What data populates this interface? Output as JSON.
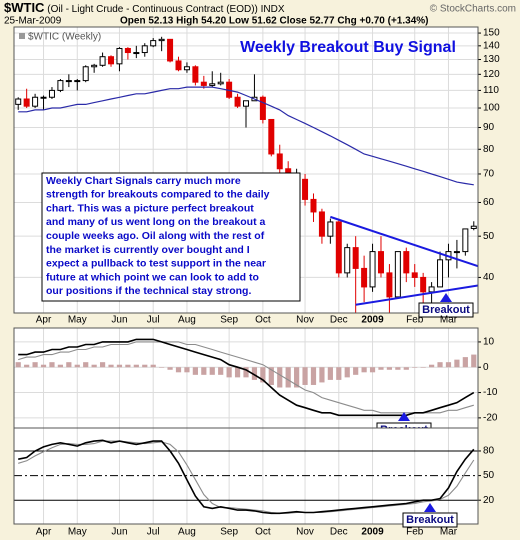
{
  "header": {
    "symbol": "$WTIC",
    "description": "(Oil - Light Crude - Continuous Contract (EOD))",
    "exchange": "INDX",
    "date": "25-Mar-2009",
    "quote": "Open 52.13 High 54.20 Low 51.62 Close 52.77 Chg +0.70 (+1.34%)",
    "credit": "© StockCharts.com"
  },
  "chart_data": [
    {
      "type": "candlestick",
      "title": "Weekly Breakout Buy Signal",
      "label": "$WTIC (Weekly)",
      "log_scale": true,
      "grid": true,
      "categories": [
        null,
        null,
        null,
        "Apr",
        null,
        null,
        null,
        "May",
        null,
        null,
        null,
        null,
        "Jun",
        null,
        null,
        null,
        "Jul",
        null,
        null,
        null,
        "Aug",
        null,
        null,
        null,
        null,
        "Sep",
        null,
        null,
        null,
        "Oct",
        null,
        null,
        null,
        null,
        "Nov",
        null,
        null,
        null,
        "Dec",
        null,
        null,
        null,
        "2009",
        null,
        null,
        null,
        null,
        "Feb",
        null,
        null,
        null,
        "Mar",
        null,
        null,
        null
      ],
      "open": [
        102,
        105,
        101,
        106,
        106,
        110,
        116,
        116,
        116,
        125,
        126,
        132,
        127,
        138,
        135,
        135,
        140,
        144,
        145,
        129,
        123,
        125,
        115,
        113,
        114,
        115,
        106,
        101,
        104,
        106,
        94,
        78,
        72,
        64,
        68,
        61,
        57,
        50,
        54,
        41,
        47,
        42,
        38,
        46,
        41,
        36,
        46,
        41,
        40,
        37,
        38,
        44,
        46,
        46,
        52.13
      ],
      "high": [
        106,
        111,
        108,
        107,
        112,
        117,
        120,
        117,
        126,
        127,
        135,
        133,
        139,
        139,
        140,
        142,
        146,
        147,
        145,
        132,
        128,
        126,
        119,
        122,
        121,
        117,
        108,
        104,
        120,
        107,
        94,
        82,
        75,
        72,
        70,
        63,
        58,
        55,
        55,
        48,
        50,
        45,
        48,
        50,
        43,
        46,
        47,
        43,
        41,
        39,
        46,
        48,
        49,
        52,
        54.2
      ],
      "low": [
        99,
        100,
        100,
        99,
        105,
        109,
        112,
        110,
        115,
        121,
        125,
        125,
        122,
        130,
        131,
        132,
        139,
        136,
        128,
        122,
        121,
        113,
        111,
        112,
        113,
        105,
        100,
        90,
        104,
        92,
        77,
        68,
        62,
        61,
        59,
        54,
        48,
        48,
        40,
        40,
        33,
        35,
        37,
        40,
        33,
        36,
        39,
        38,
        34,
        34,
        38,
        40,
        42,
        45,
        51.62
      ],
      "close": [
        105,
        101,
        106,
        106,
        110,
        116,
        116,
        116,
        125,
        126,
        132,
        127,
        138,
        135,
        135,
        140,
        144,
        145,
        129,
        123,
        125,
        115,
        113,
        114,
        115,
        106,
        101,
        104,
        106,
        94,
        78,
        72,
        64,
        68,
        61,
        57,
        50,
        54,
        41,
        47,
        42,
        38,
        46,
        41,
        36,
        46,
        41,
        40,
        37,
        38,
        44,
        46,
        46,
        52,
        52.77
      ],
      "up_color": "#000000",
      "down_color": "#e00000",
      "overlay": {
        "color": "#2a2aa8",
        "values": [
          98,
          98,
          99,
          99,
          100,
          100,
          101,
          102,
          102,
          103,
          104,
          105,
          106,
          107,
          108,
          108,
          109,
          110,
          111,
          111,
          112,
          112,
          112,
          112,
          111,
          110,
          109,
          107,
          105,
          103,
          101,
          99,
          96,
          94,
          92,
          90,
          88,
          86,
          84,
          82,
          80,
          78,
          77,
          76,
          75,
          74,
          73,
          72,
          71,
          70,
          69,
          68,
          67,
          66.5,
          66
        ]
      },
      "trendlines": [
        {
          "from": [
            37,
            55.5
          ],
          "to": [
            54.5,
            42.5
          ]
        },
        {
          "from": [
            40,
            34.5
          ],
          "to": [
            54.5,
            38.3
          ]
        }
      ],
      "trendline_color": "#1a1ae0",
      "note": [
        "Weekly Chart Signals carry much more",
        "strength for breakouts compared to the daily",
        "chart. This was a picture perfect breakout",
        "and many of us went long on the breakout a",
        "couple weeks ago. Oil along with the rest of",
        "the market is currently over bought and I",
        "expect a pullback to test support in the near",
        "future at which point we can look to add to",
        "our positions if the technical stay strong."
      ],
      "annotation": "Breakout",
      "ylim": [
        33,
        155
      ],
      "yticks": [
        40,
        50,
        60,
        70,
        80,
        90,
        100,
        110,
        120,
        130,
        140,
        150
      ]
    },
    {
      "type": "macd",
      "grid": true,
      "series": [
        {
          "color": "#000000",
          "values": [
            5,
            5,
            6,
            6,
            7,
            7,
            8,
            8,
            9,
            9,
            10,
            10,
            10,
            10,
            11,
            11,
            11,
            10,
            9,
            8,
            7,
            6,
            5,
            4,
            3,
            1,
            0,
            -1,
            -3,
            -5,
            -8,
            -11,
            -13,
            -15,
            -16,
            -17,
            -18,
            -18,
            -19,
            -19,
            -19,
            -19,
            -19,
            -19,
            -19,
            -19,
            -19,
            -18,
            -18,
            -17,
            -16,
            -15,
            -14,
            -12,
            -10
          ]
        },
        {
          "color": "#8c8c8c",
          "values": [
            3,
            4,
            4,
            5,
            5,
            6,
            6,
            7,
            7,
            8,
            8,
            9,
            9,
            9,
            10,
            10,
            10,
            10,
            10,
            10,
            9,
            9,
            8,
            7,
            6,
            5,
            4,
            3,
            2,
            1,
            -1,
            -3,
            -5,
            -7,
            -9,
            -10,
            -12,
            -13,
            -14,
            -15,
            -16,
            -17,
            -17,
            -18,
            -18,
            -18,
            -18,
            -18,
            -18,
            -18,
            -18,
            -17,
            -17,
            -16,
            -15
          ]
        }
      ],
      "histogram": {
        "color": "#c9a3a3",
        "values": [
          2,
          1,
          2,
          1,
          2,
          1,
          2,
          1,
          2,
          1,
          2,
          1,
          1,
          1,
          1,
          1,
          1,
          0,
          -1,
          -2,
          -2,
          -3,
          -3,
          -3,
          -3,
          -4,
          -4,
          -4,
          -5,
          -6,
          -7,
          -8,
          -8,
          -8,
          -7,
          -7,
          -6,
          -5,
          -5,
          -4,
          -3,
          -2,
          -2,
          -1,
          -1,
          -1,
          -1,
          0,
          0,
          1,
          2,
          2,
          3,
          4,
          5
        ]
      },
      "annotation": "Breakout",
      "ylim": [
        -24,
        15.5
      ],
      "yticks": [
        -20,
        -10,
        0,
        10
      ]
    },
    {
      "type": "line",
      "grid": true,
      "series": [
        {
          "color": "#000000",
          "values": [
            70,
            72,
            80,
            85,
            88,
            90,
            88,
            86,
            90,
            92,
            93,
            90,
            92,
            90,
            88,
            90,
            92,
            92,
            80,
            65,
            45,
            25,
            12,
            10,
            12,
            10,
            8,
            8,
            7,
            5,
            4,
            4,
            5,
            6,
            5,
            5,
            6,
            7,
            8,
            9,
            10,
            11,
            12,
            13,
            14,
            15,
            16,
            18,
            20,
            20,
            22,
            35,
            55,
            70,
            82
          ]
        },
        {
          "color": "#8c8c8c",
          "values": [
            65,
            68,
            74,
            79,
            84,
            88,
            89,
            88,
            88,
            89,
            92,
            92,
            92,
            91,
            90,
            89,
            90,
            91,
            88,
            79,
            63,
            45,
            27,
            16,
            11,
            11,
            10,
            9,
            8,
            7,
            5,
            4,
            4,
            5,
            5,
            5,
            5,
            6,
            7,
            8,
            9,
            10,
            11,
            12,
            13,
            14,
            15,
            16,
            18,
            19,
            21,
            26,
            37,
            53,
            69
          ]
        }
      ],
      "annotation": "Breakout",
      "ylim": [
        -9,
        108
      ],
      "yticks": [
        20,
        50,
        80
      ]
    }
  ]
}
